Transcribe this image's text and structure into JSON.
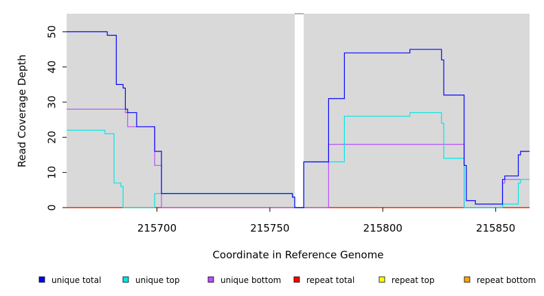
{
  "chart_data": {
    "type": "line",
    "title": "",
    "xlabel": "Coordinate in Reference Genome",
    "ylabel": "Read Coverage Depth",
    "xlim": [
      215660,
      215865
    ],
    "ylim": [
      0,
      55
    ],
    "xticks": [
      215700,
      215750,
      215800,
      215850
    ],
    "yticks": [
      0,
      10,
      20,
      30,
      40,
      50
    ],
    "shaded_regions": [
      [
        215660,
        215761
      ],
      [
        215765,
        215865
      ]
    ],
    "shade_color": "#d9d9d9",
    "grid": false,
    "legend_position": "bottom",
    "series": [
      {
        "name": "unique total",
        "color": "#0000ff",
        "points": [
          [
            215660,
            50
          ],
          [
            215678,
            50
          ],
          [
            215678,
            49
          ],
          [
            215682,
            49
          ],
          [
            215682,
            35
          ],
          [
            215685,
            35
          ],
          [
            215685,
            34
          ],
          [
            215686,
            34
          ],
          [
            215686,
            28
          ],
          [
            215687,
            28
          ],
          [
            215687,
            27
          ],
          [
            215691,
            27
          ],
          [
            215691,
            23
          ],
          [
            215699,
            23
          ],
          [
            215699,
            16
          ],
          [
            215702,
            16
          ],
          [
            215702,
            4
          ],
          [
            215760,
            4
          ],
          [
            215760,
            3
          ],
          [
            215761,
            3
          ],
          [
            215761,
            0
          ],
          [
            215765,
            0
          ],
          [
            215765,
            13
          ],
          [
            215776,
            13
          ],
          [
            215776,
            31
          ],
          [
            215783,
            31
          ],
          [
            215783,
            44
          ],
          [
            215812,
            44
          ],
          [
            215812,
            45
          ],
          [
            215826,
            45
          ],
          [
            215826,
            42
          ],
          [
            215827,
            42
          ],
          [
            215827,
            32
          ],
          [
            215836,
            32
          ],
          [
            215836,
            12
          ],
          [
            215837,
            12
          ],
          [
            215837,
            2
          ],
          [
            215841,
            2
          ],
          [
            215841,
            1
          ],
          [
            215853,
            1
          ],
          [
            215853,
            8
          ],
          [
            215854,
            8
          ],
          [
            215854,
            9
          ],
          [
            215860,
            9
          ],
          [
            215860,
            15
          ],
          [
            215861,
            15
          ],
          [
            215861,
            16
          ],
          [
            215865,
            16
          ]
        ]
      },
      {
        "name": "unique top",
        "color": "#00e5e5",
        "points": [
          [
            215660,
            22
          ],
          [
            215677,
            22
          ],
          [
            215677,
            21
          ],
          [
            215681,
            21
          ],
          [
            215681,
            7
          ],
          [
            215684,
            7
          ],
          [
            215684,
            6
          ],
          [
            215685,
            6
          ],
          [
            215685,
            0
          ],
          [
            215699,
            0
          ],
          [
            215699,
            4
          ],
          [
            215760,
            4
          ],
          [
            215760,
            3
          ],
          [
            215761,
            3
          ],
          [
            215761,
            0
          ],
          [
            215765,
            0
          ],
          [
            215765,
            13
          ],
          [
            215783,
            13
          ],
          [
            215783,
            26
          ],
          [
            215812,
            26
          ],
          [
            215812,
            27
          ],
          [
            215826,
            27
          ],
          [
            215826,
            24
          ],
          [
            215827,
            24
          ],
          [
            215827,
            14
          ],
          [
            215836,
            14
          ],
          [
            215836,
            0
          ],
          [
            215853,
            0
          ],
          [
            215853,
            1
          ],
          [
            215860,
            1
          ],
          [
            215860,
            7
          ],
          [
            215861,
            7
          ],
          [
            215861,
            8
          ],
          [
            215865,
            8
          ]
        ]
      },
      {
        "name": "unique bottom",
        "color": "#b84dff",
        "points": [
          [
            215660,
            28
          ],
          [
            215686,
            28
          ],
          [
            215686,
            27
          ],
          [
            215687,
            27
          ],
          [
            215687,
            23
          ],
          [
            215699,
            23
          ],
          [
            215699,
            12
          ],
          [
            215702,
            12
          ],
          [
            215702,
            0
          ],
          [
            215776,
            0
          ],
          [
            215776,
            18
          ],
          [
            215836,
            18
          ],
          [
            215836,
            0
          ],
          [
            215853,
            0
          ],
          [
            215853,
            7
          ],
          [
            215854,
            7
          ],
          [
            215854,
            8
          ],
          [
            215865,
            8
          ]
        ]
      },
      {
        "name": "repeat total",
        "color": "#ff0000",
        "points": [
          [
            215660,
            0
          ],
          [
            215865,
            0
          ]
        ]
      },
      {
        "name": "repeat top",
        "color": "#ffff00",
        "points": [
          [
            215660,
            0
          ],
          [
            215865,
            0
          ]
        ]
      },
      {
        "name": "repeat bottom",
        "color": "#ffa500",
        "points": [
          [
            215660,
            0
          ],
          [
            215865,
            0
          ]
        ]
      }
    ]
  }
}
